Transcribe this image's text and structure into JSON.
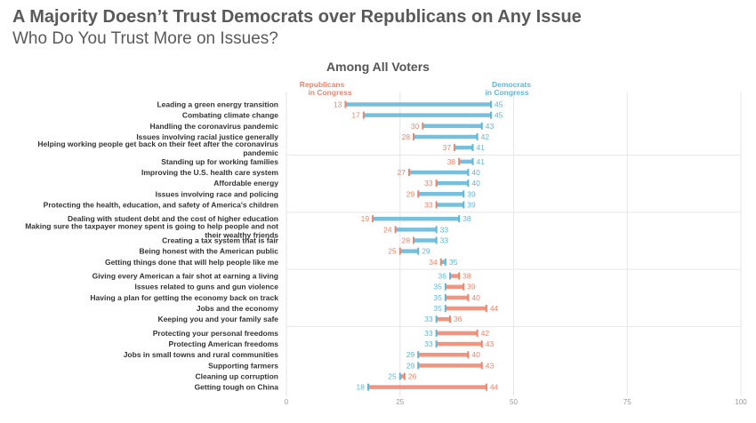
{
  "title": "A Majority Doesn’t Trust Democrats over Republicans on Any Issue",
  "subtitle": "Who Do You Trust More on Issues?",
  "chart_data": {
    "type": "dumbbell",
    "title": "Among All Voters",
    "xlim": [
      0,
      100
    ],
    "xticks": [
      0,
      25,
      50,
      75,
      100
    ],
    "grid": true,
    "colors": {
      "republicans": "#f0836b",
      "democrats": "#5fb6d8"
    },
    "series": [
      {
        "name": "Republicans in Congress",
        "key": "rep",
        "color": "#f0836b"
      },
      {
        "name": "Democrats in Congress",
        "key": "dem",
        "color": "#5fb6d8"
      }
    ],
    "groups": [
      [
        {
          "label": "Leading a green energy transition",
          "rep": 13,
          "dem": 45
        },
        {
          "label": "Combating climate change",
          "rep": 17,
          "dem": 45
        },
        {
          "label": "Handling the coronavirus pandemic",
          "rep": 30,
          "dem": 43
        },
        {
          "label": "Issues involving racial justice generally",
          "rep": 28,
          "dem": 42
        },
        {
          "label": "Helping working people get back on their feet after the coronavirus pandemic",
          "rep": 37,
          "dem": 41
        }
      ],
      [
        {
          "label": "Standing up for working families",
          "rep": 38,
          "dem": 41
        },
        {
          "label": "Improving the U.S. health care system",
          "rep": 27,
          "dem": 40
        },
        {
          "label": "Affordable energy",
          "rep": 33,
          "dem": 40
        },
        {
          "label": "Issues involving race and policing",
          "rep": 29,
          "dem": 39
        },
        {
          "label": "Protecting the health, education, and safety of America's children",
          "rep": 33,
          "dem": 39
        }
      ],
      [
        {
          "label": "Dealing with student debt and the cost of higher education",
          "rep": 19,
          "dem": 38
        },
        {
          "label": "Making sure the taxpayer money spent is going to help people and not their wealthy friends",
          "rep": 24,
          "dem": 33
        },
        {
          "label": "Creating a tax system that is fair",
          "rep": 28,
          "dem": 33
        },
        {
          "label": "Being honest with the American public",
          "rep": 25,
          "dem": 29
        },
        {
          "label": "Getting things done that will help people like me",
          "rep": 34,
          "dem": 35
        }
      ],
      [
        {
          "label": "Giving every American a fair shot at earning a living",
          "rep": 38,
          "dem": 36
        },
        {
          "label": "Issues related to guns and gun violence",
          "rep": 39,
          "dem": 35
        },
        {
          "label": "Having a plan for getting the economy back on track",
          "rep": 40,
          "dem": 35
        },
        {
          "label": "Jobs and the economy",
          "rep": 44,
          "dem": 35
        },
        {
          "label": "Keeping you and your family safe",
          "rep": 36,
          "dem": 33
        }
      ],
      [
        {
          "label": "Protecting your personal freedoms",
          "rep": 42,
          "dem": 33
        },
        {
          "label": "Protecting American freedoms",
          "rep": 43,
          "dem": 33
        },
        {
          "label": "Jobs in small towns and rural communities",
          "rep": 40,
          "dem": 29
        },
        {
          "label": "Supporting farmers",
          "rep": 43,
          "dem": 29
        },
        {
          "label": "Cleaning up corruption",
          "rep": 26,
          "dem": 25
        },
        {
          "label": "Getting tough on China",
          "rep": 44,
          "dem": 18
        }
      ]
    ]
  }
}
